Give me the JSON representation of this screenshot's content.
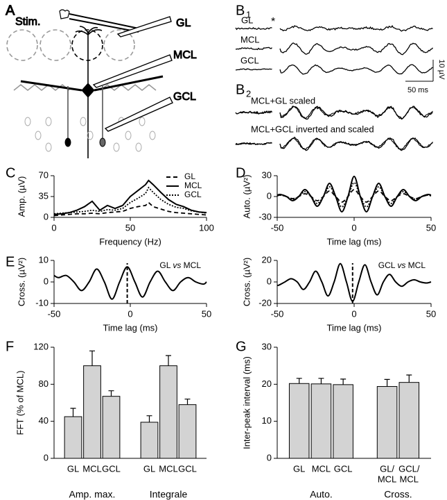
{
  "diagram": {
    "panel": "A",
    "stim": "Stim.",
    "layers": [
      "GL",
      "MCL",
      "GCL"
    ]
  },
  "traces": {
    "b1": {
      "panel": "B",
      "index": "1",
      "rows": [
        "GL",
        "MCL",
        "GCL"
      ],
      "stimulus": "*"
    },
    "scale": {
      "y": "10 µV",
      "x": "50 ms"
    },
    "b2": {
      "panel": "B",
      "index": "2",
      "rows": [
        "MCL+GL scaled",
        "MCL+GCL inverted and scaled"
      ]
    }
  },
  "chart_data": [
    {
      "type": "line",
      "panel": "C",
      "ylabel": "Amp. (µV)",
      "xlabel": "Frequency (Hz)",
      "x": [
        0,
        5,
        10,
        15,
        20,
        25,
        30,
        35,
        40,
        45,
        50,
        55,
        60,
        62,
        65,
        70,
        75,
        80,
        85,
        90,
        95,
        100
      ],
      "series": [
        {
          "name": "GL",
          "color": "#000000",
          "style": "dashed",
          "values": [
            3,
            4,
            5,
            6,
            6,
            7,
            6,
            8,
            9,
            10,
            15,
            18,
            20,
            25,
            18,
            14,
            10,
            8,
            7,
            6,
            5,
            4
          ]
        },
        {
          "name": "MCL",
          "color": "#000000",
          "style": "solid",
          "values": [
            5,
            6,
            8,
            12,
            18,
            27,
            12,
            20,
            15,
            20,
            35,
            45,
            55,
            62,
            55,
            42,
            30,
            22,
            18,
            12,
            9,
            8
          ]
        },
        {
          "name": "GCL",
          "color": "#000000",
          "style": "dotted",
          "values": [
            6,
            7,
            8,
            9,
            10,
            12,
            10,
            13,
            12,
            15,
            25,
            32,
            40,
            50,
            42,
            30,
            22,
            17,
            15,
            11,
            9,
            7
          ]
        }
      ],
      "xlim": [
        0,
        100
      ],
      "xticks": [
        0,
        50,
        100
      ],
      "ylim": [
        0,
        70
      ],
      "yticks": [
        0,
        35,
        70
      ],
      "smooth": false,
      "legend": "upper right"
    },
    {
      "type": "line",
      "panel": "D",
      "ylabel": "Auto. (µV²)",
      "xlabel": "Time lag (ms)",
      "x": [
        -50,
        -48,
        -44,
        -40,
        -36,
        -32,
        -28,
        -24,
        -20,
        -16,
        -12,
        -8,
        -4,
        0,
        4,
        8,
        12,
        16,
        20,
        24,
        28,
        32,
        36,
        40,
        44,
        48,
        50
      ],
      "series": [
        {
          "name": "GL",
          "color": "#000000",
          "style": "dashed",
          "values": [
            1,
            2,
            0,
            -3,
            0,
            4,
            0,
            -6,
            0,
            8,
            0,
            -8,
            0,
            10,
            0,
            -8,
            0,
            8,
            0,
            -6,
            0,
            4,
            0,
            -3,
            0,
            2,
            1
          ]
        },
        {
          "name": "MCL",
          "color": "#000000",
          "style": "solid",
          "values": [
            2,
            3,
            0,
            -6,
            0,
            10,
            0,
            -14,
            0,
            19,
            0,
            -22,
            0,
            29,
            0,
            -22,
            0,
            19,
            0,
            -14,
            0,
            10,
            0,
            -6,
            0,
            3,
            2
          ]
        },
        {
          "name": "GCL",
          "color": "#000000",
          "style": "dotted",
          "values": [
            1,
            2,
            0,
            -4,
            0,
            7,
            0,
            -10,
            0,
            14,
            0,
            -15,
            0,
            20,
            0,
            -15,
            0,
            14,
            0,
            -10,
            0,
            7,
            0,
            -4,
            0,
            2,
            1
          ]
        }
      ],
      "xlim": [
        -50,
        50
      ],
      "xticks": [
        -50,
        0,
        50
      ],
      "ylim": [
        -30,
        30
      ],
      "yticks": [
        -30,
        0,
        30
      ],
      "smooth": true
    },
    {
      "type": "line",
      "panel": "E",
      "ylabel": "Cross. (µV²)",
      "xlabel": "Time lag (ms)",
      "annotation": [
        "GL",
        "vs",
        "MCL"
      ],
      "x": [
        -50,
        -47,
        -42,
        -37,
        -32,
        -27,
        -22,
        -17,
        -12,
        -7,
        -2,
        3,
        8,
        13,
        18,
        23,
        28,
        33,
        38,
        43,
        48,
        50
      ],
      "series": [
        {
          "name": "GL vs MCL",
          "color": "#000000",
          "style": "solid",
          "values": [
            3,
            2,
            3,
            0,
            -4,
            0,
            6,
            0,
            -8,
            0,
            7,
            0,
            -7,
            0,
            5,
            0,
            -4,
            0,
            2,
            0,
            -1,
            0
          ]
        }
      ],
      "marker_x": -2,
      "xlim": [
        -50,
        50
      ],
      "xticks": [
        -50,
        0,
        50
      ],
      "ylim": [
        -10,
        10
      ],
      "yticks": [
        -10,
        0,
        10
      ],
      "smooth": true
    },
    {
      "type": "line",
      "ylabel": "Cross. (µV²)",
      "xlabel": "Time lag (ms)",
      "annotation": [
        "GCL",
        "vs",
        "MCL"
      ],
      "x": [
        -50,
        -49,
        -45,
        -41,
        -37,
        -33,
        -29,
        -25,
        -21,
        -17,
        -13,
        -9,
        -5,
        -1,
        3,
        7,
        11,
        15,
        19,
        23,
        27,
        31,
        35,
        39,
        43,
        47,
        50
      ],
      "series": [
        {
          "name": "GCL vs MCL",
          "color": "#000000",
          "style": "solid",
          "values": [
            -3,
            -3,
            0,
            3,
            0,
            -7,
            0,
            10,
            0,
            -13,
            0,
            17,
            0,
            -18,
            0,
            16,
            0,
            -12,
            0,
            7,
            0,
            -4,
            0,
            2,
            0,
            -1,
            0
          ]
        }
      ],
      "marker_x": -1,
      "xlim": [
        -50,
        50
      ],
      "xticks": [
        -50,
        0,
        50
      ],
      "ylim": [
        -20,
        20
      ],
      "yticks": [
        -20,
        0,
        20
      ],
      "smooth": true
    },
    {
      "type": "bar",
      "panel": "F",
      "ylabel": "FFT (% of MCL)",
      "color": "#d3d3d3",
      "groups": [
        {
          "label": "Amp. max.",
          "categories": [
            [
              "GL"
            ],
            [
              "MCL"
            ],
            [
              "GCL"
            ]
          ],
          "values": [
            45,
            100,
            67
          ],
          "errors": [
            9,
            16,
            6
          ]
        },
        {
          "label": "Integrale",
          "categories": [
            [
              "GL"
            ],
            [
              "MCL"
            ],
            [
              "GCL"
            ]
          ],
          "values": [
            39,
            100,
            58
          ],
          "errors": [
            7,
            11,
            6
          ]
        }
      ],
      "ylim": [
        0,
        120
      ],
      "yticks": [
        0,
        40,
        80,
        120
      ]
    },
    {
      "type": "bar",
      "panel": "G",
      "ylabel": "Inter-peak interval (ms)",
      "color": "#d3d3d3",
      "groups": [
        {
          "label": "Auto.",
          "categories": [
            [
              "GL"
            ],
            [
              "MCL"
            ],
            [
              "GCL"
            ]
          ],
          "values": [
            20.2,
            20.1,
            19.9
          ],
          "errors": [
            1.4,
            1.5,
            1.5
          ]
        },
        {
          "label": "Cross.",
          "categories": [
            [
              "GL/",
              "MCL"
            ],
            [
              "GCL/",
              "MCL"
            ]
          ],
          "values": [
            19.4,
            20.5
          ],
          "errors": [
            1.9,
            2
          ]
        }
      ],
      "ylim": [
        0,
        30
      ],
      "yticks": [
        0,
        10,
        20,
        30
      ]
    }
  ]
}
